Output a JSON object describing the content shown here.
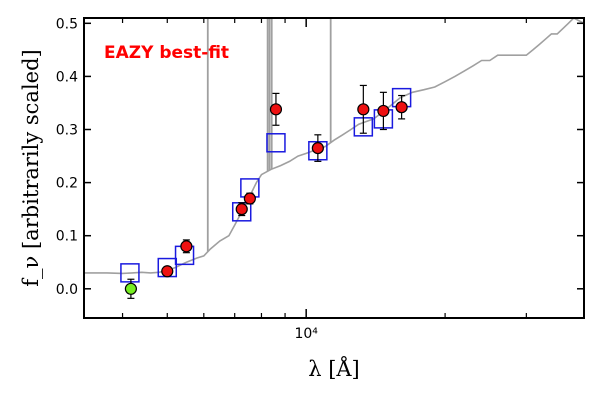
{
  "chart_data": {
    "type": "scatter",
    "title": "",
    "xlabel": "λ [Å]",
    "ylabel": "f_ν [arbitrarily scaled]",
    "xscale": "log",
    "xlim": [
      3300,
      40000
    ],
    "ylim": [
      -0.055,
      0.51
    ],
    "xticks": [
      {
        "value": 10000,
        "label": "10⁴"
      }
    ],
    "yticks": [
      0.0,
      0.1,
      0.2,
      0.3,
      0.4,
      0.5
    ],
    "ytick_labels": [
      "0.0",
      "0.1",
      "0.2",
      "0.3",
      "0.4",
      "0.5"
    ],
    "grid": false,
    "annotation": "EAZY best-fit",
    "colors": {
      "template": "#a0a0a0",
      "model_box": "#1a1adf",
      "detection": "#ee1111",
      "upper_point": "#77ee22",
      "annotation": "#ff0000"
    },
    "series": [
      {
        "kind": "template_line",
        "x": [
          3300,
          3700,
          4000,
          4200,
          4400,
          4600,
          4800,
          5000,
          5200,
          5500,
          5800,
          6000,
          6200,
          6500,
          6800,
          7000,
          7200,
          7400,
          7600,
          7800,
          8000,
          8400,
          8800,
          9200,
          9600,
          10000,
          10500,
          11000,
          11500,
          12000,
          12500,
          13000,
          13500,
          14000,
          14500,
          15000,
          16000,
          17000,
          18000,
          19000,
          20000,
          21000,
          22000,
          23000,
          24000,
          25000,
          26000,
          27000,
          28000,
          29000,
          30000,
          31000,
          32000,
          33000,
          34000,
          35000,
          36000,
          37000,
          38000,
          40000
        ],
        "y": [
          0.03,
          0.03,
          0.029,
          0.03,
          0.031,
          0.03,
          0.031,
          0.035,
          0.04,
          0.05,
          0.058,
          0.062,
          0.075,
          0.09,
          0.1,
          0.12,
          0.14,
          0.16,
          0.18,
          0.2,
          0.215,
          0.225,
          0.232,
          0.24,
          0.25,
          0.255,
          0.262,
          0.268,
          0.28,
          0.29,
          0.3,
          0.31,
          0.315,
          0.32,
          0.33,
          0.34,
          0.36,
          0.37,
          0.375,
          0.38,
          0.39,
          0.4,
          0.41,
          0.42,
          0.43,
          0.43,
          0.44,
          0.44,
          0.44,
          0.44,
          0.44,
          0.45,
          0.46,
          0.47,
          0.48,
          0.48,
          0.49,
          0.5,
          0.51,
          0.5
        ]
      },
      {
        "kind": "template_spikes",
        "x": [
          6120,
          8250,
          8330,
          8420,
          11300
        ],
        "y_top": [
          0.51,
          0.51,
          0.51,
          0.51,
          0.51
        ]
      },
      {
        "kind": "model_boxes",
        "x": [
          4150,
          5000,
          5450,
          7250,
          7550,
          8600,
          10600,
          13300,
          14700,
          16100
        ],
        "y": [
          0.03,
          0.04,
          0.063,
          0.145,
          0.19,
          0.275,
          0.26,
          0.305,
          0.32,
          0.36
        ]
      },
      {
        "kind": "detections",
        "x": [
          5000,
          5500,
          7250,
          7550,
          8600,
          10600,
          13300,
          14700,
          16100
        ],
        "y": [
          0.033,
          0.08,
          0.15,
          0.17,
          0.338,
          0.265,
          0.338,
          0.335,
          0.342
        ],
        "yerr": [
          0.008,
          0.012,
          0.012,
          0.01,
          0.03,
          0.025,
          0.045,
          0.035,
          0.022
        ]
      },
      {
        "kind": "non_detection",
        "x": [
          4170
        ],
        "y": [
          0.0
        ],
        "yerr": [
          0.018
        ]
      }
    ]
  }
}
